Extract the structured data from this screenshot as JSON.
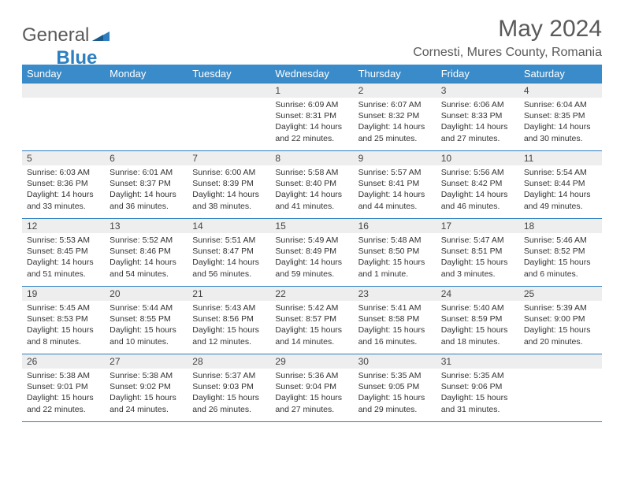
{
  "logo": {
    "text1": "General",
    "text2": "Blue"
  },
  "title": "May 2024",
  "location": "Cornesti, Mures County, Romania",
  "colors": {
    "header_bg": "#3a8bc9",
    "border": "#2d7fc1",
    "daynum_bg": "#eeeeee",
    "text": "#333333",
    "title_text": "#5a5a5a"
  },
  "weekdays": [
    "Sunday",
    "Monday",
    "Tuesday",
    "Wednesday",
    "Thursday",
    "Friday",
    "Saturday"
  ],
  "weeks": [
    [
      null,
      null,
      null,
      {
        "n": "1",
        "sr": "6:09 AM",
        "ss": "8:31 PM",
        "dl": "14 hours and 22 minutes."
      },
      {
        "n": "2",
        "sr": "6:07 AM",
        "ss": "8:32 PM",
        "dl": "14 hours and 25 minutes."
      },
      {
        "n": "3",
        "sr": "6:06 AM",
        "ss": "8:33 PM",
        "dl": "14 hours and 27 minutes."
      },
      {
        "n": "4",
        "sr": "6:04 AM",
        "ss": "8:35 PM",
        "dl": "14 hours and 30 minutes."
      }
    ],
    [
      {
        "n": "5",
        "sr": "6:03 AM",
        "ss": "8:36 PM",
        "dl": "14 hours and 33 minutes."
      },
      {
        "n": "6",
        "sr": "6:01 AM",
        "ss": "8:37 PM",
        "dl": "14 hours and 36 minutes."
      },
      {
        "n": "7",
        "sr": "6:00 AM",
        "ss": "8:39 PM",
        "dl": "14 hours and 38 minutes."
      },
      {
        "n": "8",
        "sr": "5:58 AM",
        "ss": "8:40 PM",
        "dl": "14 hours and 41 minutes."
      },
      {
        "n": "9",
        "sr": "5:57 AM",
        "ss": "8:41 PM",
        "dl": "14 hours and 44 minutes."
      },
      {
        "n": "10",
        "sr": "5:56 AM",
        "ss": "8:42 PM",
        "dl": "14 hours and 46 minutes."
      },
      {
        "n": "11",
        "sr": "5:54 AM",
        "ss": "8:44 PM",
        "dl": "14 hours and 49 minutes."
      }
    ],
    [
      {
        "n": "12",
        "sr": "5:53 AM",
        "ss": "8:45 PM",
        "dl": "14 hours and 51 minutes."
      },
      {
        "n": "13",
        "sr": "5:52 AM",
        "ss": "8:46 PM",
        "dl": "14 hours and 54 minutes."
      },
      {
        "n": "14",
        "sr": "5:51 AM",
        "ss": "8:47 PM",
        "dl": "14 hours and 56 minutes."
      },
      {
        "n": "15",
        "sr": "5:49 AM",
        "ss": "8:49 PM",
        "dl": "14 hours and 59 minutes."
      },
      {
        "n": "16",
        "sr": "5:48 AM",
        "ss": "8:50 PM",
        "dl": "15 hours and 1 minute."
      },
      {
        "n": "17",
        "sr": "5:47 AM",
        "ss": "8:51 PM",
        "dl": "15 hours and 3 minutes."
      },
      {
        "n": "18",
        "sr": "5:46 AM",
        "ss": "8:52 PM",
        "dl": "15 hours and 6 minutes."
      }
    ],
    [
      {
        "n": "19",
        "sr": "5:45 AM",
        "ss": "8:53 PM",
        "dl": "15 hours and 8 minutes."
      },
      {
        "n": "20",
        "sr": "5:44 AM",
        "ss": "8:55 PM",
        "dl": "15 hours and 10 minutes."
      },
      {
        "n": "21",
        "sr": "5:43 AM",
        "ss": "8:56 PM",
        "dl": "15 hours and 12 minutes."
      },
      {
        "n": "22",
        "sr": "5:42 AM",
        "ss": "8:57 PM",
        "dl": "15 hours and 14 minutes."
      },
      {
        "n": "23",
        "sr": "5:41 AM",
        "ss": "8:58 PM",
        "dl": "15 hours and 16 minutes."
      },
      {
        "n": "24",
        "sr": "5:40 AM",
        "ss": "8:59 PM",
        "dl": "15 hours and 18 minutes."
      },
      {
        "n": "25",
        "sr": "5:39 AM",
        "ss": "9:00 PM",
        "dl": "15 hours and 20 minutes."
      }
    ],
    [
      {
        "n": "26",
        "sr": "5:38 AM",
        "ss": "9:01 PM",
        "dl": "15 hours and 22 minutes."
      },
      {
        "n": "27",
        "sr": "5:38 AM",
        "ss": "9:02 PM",
        "dl": "15 hours and 24 minutes."
      },
      {
        "n": "28",
        "sr": "5:37 AM",
        "ss": "9:03 PM",
        "dl": "15 hours and 26 minutes."
      },
      {
        "n": "29",
        "sr": "5:36 AM",
        "ss": "9:04 PM",
        "dl": "15 hours and 27 minutes."
      },
      {
        "n": "30",
        "sr": "5:35 AM",
        "ss": "9:05 PM",
        "dl": "15 hours and 29 minutes."
      },
      {
        "n": "31",
        "sr": "5:35 AM",
        "ss": "9:06 PM",
        "dl": "15 hours and 31 minutes."
      },
      null
    ]
  ],
  "labels": {
    "sunrise": "Sunrise:",
    "sunset": "Sunset:",
    "daylight": "Daylight:"
  }
}
